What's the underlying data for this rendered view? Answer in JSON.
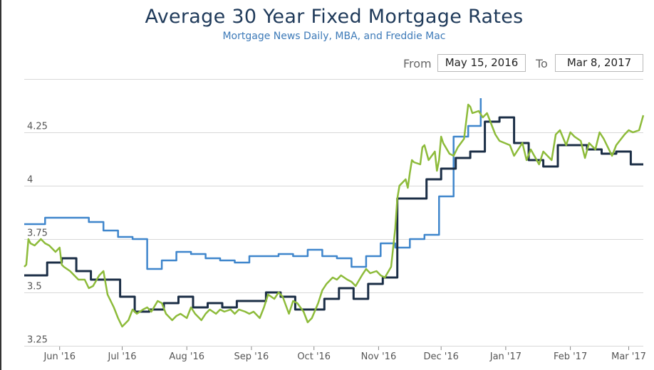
{
  "header": {
    "title": "Average 30 Year Fixed Mortgage Rates",
    "subtitle": "Mortgage News Daily, MBA, and Freddie Mac"
  },
  "range_selector": {
    "from_label": "From",
    "from_value": "May 15, 2016",
    "to_label": "To",
    "to_value": "Mar 8, 2017"
  },
  "colors": {
    "mnd": "#8dbb3a",
    "mba": "#3f86cc",
    "freddie": "#1b2e46",
    "grid": "#d8d8d8"
  },
  "chart_data": {
    "type": "line",
    "title": "Average 30 Year Fixed Mortgage Rates",
    "subtitle": "Mortgage News Daily, MBA, and Freddie Mac",
    "x_range": [
      "2016-05-15",
      "2017-03-08"
    ],
    "ylim": [
      3.25,
      4.5
    ],
    "y_ticks": [
      {
        "value": 3.25,
        "label": "3.25"
      },
      {
        "value": 3.5,
        "label": "3.5"
      },
      {
        "value": 3.75,
        "label": "3.75"
      },
      {
        "value": 4.0,
        "label": "4"
      },
      {
        "value": 4.25,
        "label": "4.25"
      },
      {
        "value": 4.5,
        "label": ""
      }
    ],
    "x_ticks": [
      {
        "date": "2016-06-01",
        "label": "Jun '16"
      },
      {
        "date": "2016-07-01",
        "label": "Jul '16"
      },
      {
        "date": "2016-08-01",
        "label": "Aug '16"
      },
      {
        "date": "2016-09-01",
        "label": "Sep '16"
      },
      {
        "date": "2016-10-01",
        "label": "Oct '16"
      },
      {
        "date": "2016-11-01",
        "label": "Nov '16"
      },
      {
        "date": "2016-12-01",
        "label": "Dec '16"
      },
      {
        "date": "2017-01-01",
        "label": "Jan '17"
      },
      {
        "date": "2017-02-01",
        "label": "Feb '17"
      },
      {
        "date": "2017-03-01",
        "label": "Mar '17"
      }
    ],
    "series": [
      {
        "key": "mba",
        "step": true,
        "x": [
          "2016-05-15",
          "2016-05-25",
          "2016-06-15",
          "2016-06-22",
          "2016-06-29",
          "2016-07-06",
          "2016-07-13",
          "2016-07-20",
          "2016-07-27",
          "2016-08-03",
          "2016-08-10",
          "2016-08-17",
          "2016-08-24",
          "2016-08-31",
          "2016-09-07",
          "2016-09-14",
          "2016-09-21",
          "2016-09-28",
          "2016-10-05",
          "2016-10-12",
          "2016-10-19",
          "2016-10-26",
          "2016-11-02",
          "2016-11-09",
          "2016-11-16",
          "2016-11-23",
          "2016-11-30",
          "2016-12-07",
          "2016-12-14",
          "2016-12-20"
        ],
        "y": [
          3.82,
          3.85,
          3.83,
          3.79,
          3.76,
          3.75,
          3.61,
          3.65,
          3.69,
          3.68,
          3.66,
          3.65,
          3.64,
          3.67,
          3.67,
          3.68,
          3.67,
          3.7,
          3.67,
          3.66,
          3.62,
          3.67,
          3.73,
          3.71,
          3.75,
          3.77,
          3.95,
          4.23,
          4.28,
          4.41
        ]
      },
      {
        "key": "freddie",
        "step": true,
        "x": [
          "2016-05-15",
          "2016-05-19",
          "2016-05-26",
          "2016-06-02",
          "2016-06-09",
          "2016-06-16",
          "2016-06-23",
          "2016-06-30",
          "2016-07-07",
          "2016-07-14",
          "2016-07-21",
          "2016-07-28",
          "2016-08-04",
          "2016-08-11",
          "2016-08-18",
          "2016-08-25",
          "2016-09-01",
          "2016-09-08",
          "2016-09-15",
          "2016-09-22",
          "2016-09-29",
          "2016-10-06",
          "2016-10-13",
          "2016-10-20",
          "2016-10-27",
          "2016-11-03",
          "2016-11-10",
          "2016-11-17",
          "2016-11-24",
          "2016-12-01",
          "2016-12-08",
          "2016-12-15",
          "2016-12-22",
          "2016-12-29",
          "2017-01-05",
          "2017-01-12",
          "2017-01-19",
          "2017-01-26",
          "2017-02-02",
          "2017-02-09",
          "2017-02-16",
          "2017-02-23",
          "2017-03-02",
          "2017-03-08"
        ],
        "y": [
          3.58,
          3.58,
          3.64,
          3.66,
          3.6,
          3.56,
          3.56,
          3.48,
          3.41,
          3.42,
          3.45,
          3.48,
          3.43,
          3.45,
          3.43,
          3.46,
          3.46,
          3.5,
          3.48,
          3.42,
          3.42,
          3.47,
          3.52,
          3.47,
          3.54,
          3.57,
          3.94,
          3.94,
          4.03,
          4.08,
          4.13,
          4.16,
          4.3,
          4.32,
          4.2,
          4.12,
          4.09,
          4.19,
          4.19,
          4.17,
          4.15,
          4.16,
          4.1,
          4.1
        ]
      },
      {
        "key": "mnd",
        "step": false,
        "x": [
          "2016-05-15",
          "2016-05-16",
          "2016-05-17",
          "2016-05-18",
          "2016-05-20",
          "2016-05-23",
          "2016-05-25",
          "2016-05-27",
          "2016-05-30",
          "2016-06-01",
          "2016-06-02",
          "2016-06-03",
          "2016-06-06",
          "2016-06-08",
          "2016-06-10",
          "2016-06-13",
          "2016-06-15",
          "2016-06-17",
          "2016-06-20",
          "2016-06-22",
          "2016-06-24",
          "2016-06-27",
          "2016-06-29",
          "2016-07-01",
          "2016-07-04",
          "2016-07-06",
          "2016-07-08",
          "2016-07-11",
          "2016-07-13",
          "2016-07-15",
          "2016-07-18",
          "2016-07-20",
          "2016-07-22",
          "2016-07-25",
          "2016-07-27",
          "2016-07-29",
          "2016-08-01",
          "2016-08-03",
          "2016-08-05",
          "2016-08-08",
          "2016-08-10",
          "2016-08-12",
          "2016-08-15",
          "2016-08-17",
          "2016-08-19",
          "2016-08-22",
          "2016-08-24",
          "2016-08-26",
          "2016-08-29",
          "2016-08-31",
          "2016-09-02",
          "2016-09-05",
          "2016-09-07",
          "2016-09-09",
          "2016-09-12",
          "2016-09-14",
          "2016-09-16",
          "2016-09-19",
          "2016-09-21",
          "2016-09-23",
          "2016-09-26",
          "2016-09-28",
          "2016-09-30",
          "2016-10-03",
          "2016-10-05",
          "2016-10-07",
          "2016-10-10",
          "2016-10-12",
          "2016-10-14",
          "2016-10-17",
          "2016-10-19",
          "2016-10-21",
          "2016-10-24",
          "2016-10-26",
          "2016-10-28",
          "2016-10-31",
          "2016-11-02",
          "2016-11-04",
          "2016-11-07",
          "2016-11-09",
          "2016-11-10",
          "2016-11-11",
          "2016-11-14",
          "2016-11-15",
          "2016-11-16",
          "2016-11-17",
          "2016-11-18",
          "2016-11-21",
          "2016-11-22",
          "2016-11-23",
          "2016-11-25",
          "2016-11-28",
          "2016-11-29",
          "2016-11-30",
          "2016-12-01",
          "2016-12-02",
          "2016-12-05",
          "2016-12-07",
          "2016-12-09",
          "2016-12-12",
          "2016-12-14",
          "2016-12-15",
          "2016-12-16",
          "2016-12-19",
          "2016-12-21",
          "2016-12-23",
          "2016-12-27",
          "2016-12-29",
          "2017-01-03",
          "2017-01-05",
          "2017-01-09",
          "2017-01-11",
          "2017-01-13",
          "2017-01-17",
          "2017-01-19",
          "2017-01-23",
          "2017-01-25",
          "2017-01-27",
          "2017-01-30",
          "2017-02-01",
          "2017-02-03",
          "2017-02-06",
          "2017-02-08",
          "2017-02-10",
          "2017-02-13",
          "2017-02-15",
          "2017-02-17",
          "2017-02-21",
          "2017-02-23",
          "2017-02-27",
          "2017-03-01",
          "2017-03-03",
          "2017-03-06",
          "2017-03-08"
        ],
        "y": [
          3.62,
          3.63,
          3.75,
          3.73,
          3.72,
          3.75,
          3.73,
          3.72,
          3.69,
          3.71,
          3.63,
          3.62,
          3.6,
          3.58,
          3.56,
          3.56,
          3.52,
          3.53,
          3.58,
          3.6,
          3.49,
          3.43,
          3.38,
          3.34,
          3.37,
          3.42,
          3.4,
          3.42,
          3.43,
          3.41,
          3.46,
          3.45,
          3.4,
          3.37,
          3.39,
          3.4,
          3.38,
          3.43,
          3.4,
          3.37,
          3.4,
          3.42,
          3.4,
          3.42,
          3.41,
          3.42,
          3.4,
          3.42,
          3.41,
          3.4,
          3.41,
          3.38,
          3.43,
          3.49,
          3.47,
          3.5,
          3.48,
          3.4,
          3.46,
          3.45,
          3.41,
          3.36,
          3.38,
          3.45,
          3.51,
          3.54,
          3.57,
          3.56,
          3.58,
          3.56,
          3.55,
          3.53,
          3.58,
          3.61,
          3.59,
          3.6,
          3.58,
          3.57,
          3.62,
          3.8,
          3.94,
          4.0,
          4.03,
          3.99,
          4.06,
          4.12,
          4.11,
          4.1,
          4.18,
          4.19,
          4.12,
          4.16,
          4.07,
          4.12,
          4.23,
          4.2,
          4.15,
          4.14,
          4.18,
          4.22,
          4.38,
          4.37,
          4.34,
          4.35,
          4.32,
          4.34,
          4.24,
          4.21,
          4.19,
          4.14,
          4.2,
          4.12,
          4.17,
          4.1,
          4.16,
          4.12,
          4.24,
          4.26,
          4.19,
          4.25,
          4.23,
          4.21,
          4.13,
          4.2,
          4.17,
          4.25,
          4.22,
          4.14,
          4.19,
          4.24,
          4.26,
          4.25,
          4.26,
          4.33
        ]
      }
    ]
  }
}
